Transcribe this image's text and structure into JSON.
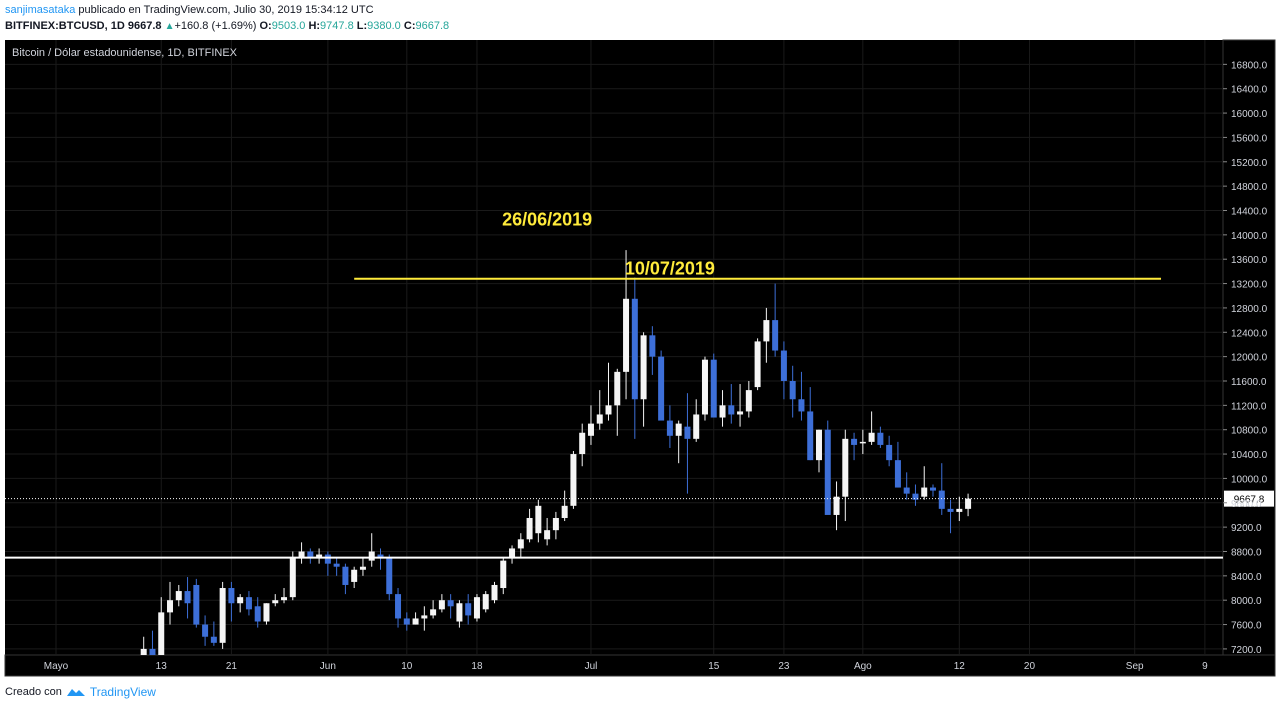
{
  "header": {
    "author": "sanjimasataka",
    "published_text": "publicado en TradingView.com, Julio 30, 2019 15:34:12 UTC",
    "symbol": "BITFINEX:BTCUSD, 1D",
    "last": "9667.8",
    "change": "+160.8 (+1.69%)",
    "open_label": "O:",
    "open": "9503.0",
    "high_label": "H:",
    "high": "9747.8",
    "low_label": "L:",
    "low": "9380.0",
    "close_label": "C:",
    "close": "9667.8"
  },
  "footer": {
    "prefix": "Creado con",
    "brand": "TradingView"
  },
  "colors": {
    "background": "#000000",
    "bull": "#f5f5f5",
    "bear": "#3d6fd8",
    "annotation": "#ffeb3b",
    "support": "#ffffff"
  },
  "chart_data": {
    "type": "candlestick",
    "title": "Bitcoin / Dólar estadounidense, 1D, BITFINEX",
    "ylim": [
      7100,
      17200
    ],
    "y_ticks": [
      7200,
      7600,
      8000,
      8400,
      8800,
      9200,
      9600,
      10000,
      10400,
      10800,
      11200,
      11600,
      12000,
      12400,
      12800,
      13200,
      13600,
      14000,
      14400,
      14800,
      15200,
      15600,
      16000,
      16400,
      16800
    ],
    "x_ticks": [
      {
        "label": "Mayo",
        "date": "2019-05-01"
      },
      {
        "label": "13",
        "date": "2019-05-13"
      },
      {
        "label": "21",
        "date": "2019-05-21"
      },
      {
        "label": "Jun",
        "date": "2019-06-01"
      },
      {
        "label": "10",
        "date": "2019-06-10"
      },
      {
        "label": "18",
        "date": "2019-06-18"
      },
      {
        "label": "Jul",
        "date": "2019-07-01"
      },
      {
        "label": "15",
        "date": "2019-07-15"
      },
      {
        "label": "23",
        "date": "2019-07-23"
      },
      {
        "label": "Ago",
        "date": "2019-08-01"
      },
      {
        "label": "12",
        "date": "2019-08-12"
      },
      {
        "label": "20",
        "date": "2019-08-20"
      },
      {
        "label": "Sep",
        "date": "2019-09-01"
      },
      {
        "label": "9",
        "date": "2019-09-09"
      }
    ],
    "last_price": 9667.8,
    "last_price_label": "9667.8",
    "resistance": {
      "price": 13280,
      "from": "2019-06-04",
      "to": "2019-09-04"
    },
    "support": {
      "price": 8700
    },
    "annotations": [
      {
        "text": "26/06/2019",
        "date": "2019-06-26",
        "price": 14150
      },
      {
        "text": "10/07/2019",
        "date": "2019-07-10",
        "price": 13350
      }
    ],
    "candles": [
      {
        "date": "2019-05-11",
        "o": 6400,
        "h": 7400,
        "l": 6300,
        "c": 7200
      },
      {
        "date": "2019-05-12",
        "o": 7200,
        "h": 7500,
        "l": 6900,
        "c": 7100
      },
      {
        "date": "2019-05-13",
        "o": 7100,
        "h": 8050,
        "l": 7000,
        "c": 7800
      },
      {
        "date": "2019-05-14",
        "o": 7800,
        "h": 8300,
        "l": 7600,
        "c": 8000
      },
      {
        "date": "2019-05-15",
        "o": 8000,
        "h": 8250,
        "l": 7900,
        "c": 8150
      },
      {
        "date": "2019-05-16",
        "o": 8150,
        "h": 8380,
        "l": 7700,
        "c": 7950
      },
      {
        "date": "2019-05-17",
        "o": 8250,
        "h": 8350,
        "l": 7550,
        "c": 7600
      },
      {
        "date": "2019-05-18",
        "o": 7600,
        "h": 7750,
        "l": 7250,
        "c": 7400
      },
      {
        "date": "2019-05-19",
        "o": 7400,
        "h": 7650,
        "l": 7250,
        "c": 7300
      },
      {
        "date": "2019-05-20",
        "o": 7300,
        "h": 8300,
        "l": 7200,
        "c": 8200
      },
      {
        "date": "2019-05-21",
        "o": 8200,
        "h": 8300,
        "l": 7650,
        "c": 7950
      },
      {
        "date": "2019-05-22",
        "o": 7950,
        "h": 8100,
        "l": 7800,
        "c": 8050
      },
      {
        "date": "2019-05-23",
        "o": 8050,
        "h": 8150,
        "l": 7750,
        "c": 7850
      },
      {
        "date": "2019-05-24",
        "o": 7900,
        "h": 8050,
        "l": 7550,
        "c": 7650
      },
      {
        "date": "2019-05-25",
        "o": 7650,
        "h": 7950,
        "l": 7600,
        "c": 7950
      },
      {
        "date": "2019-05-26",
        "o": 7950,
        "h": 8100,
        "l": 7900,
        "c": 8000
      },
      {
        "date": "2019-05-27",
        "o": 8000,
        "h": 8200,
        "l": 7950,
        "c": 8050
      },
      {
        "date": "2019-05-28",
        "o": 8050,
        "h": 8800,
        "l": 8000,
        "c": 8700
      },
      {
        "date": "2019-05-29",
        "o": 8700,
        "h": 8950,
        "l": 8600,
        "c": 8800
      },
      {
        "date": "2019-05-30",
        "o": 8800,
        "h": 8850,
        "l": 8600,
        "c": 8700
      },
      {
        "date": "2019-05-31",
        "o": 8700,
        "h": 8850,
        "l": 8600,
        "c": 8750
      },
      {
        "date": "2019-06-01",
        "o": 8750,
        "h": 8800,
        "l": 8400,
        "c": 8600
      },
      {
        "date": "2019-06-02",
        "o": 8600,
        "h": 8700,
        "l": 8400,
        "c": 8550
      },
      {
        "date": "2019-06-03",
        "o": 8550,
        "h": 8600,
        "l": 8100,
        "c": 8250
      },
      {
        "date": "2019-06-04",
        "o": 8300,
        "h": 8550,
        "l": 8200,
        "c": 8500
      },
      {
        "date": "2019-06-05",
        "o": 8500,
        "h": 8700,
        "l": 8400,
        "c": 8550
      },
      {
        "date": "2019-06-06",
        "o": 8650,
        "h": 9100,
        "l": 8550,
        "c": 8800
      },
      {
        "date": "2019-06-07",
        "o": 8750,
        "h": 8850,
        "l": 8500,
        "c": 8700
      },
      {
        "date": "2019-06-08",
        "o": 8700,
        "h": 8750,
        "l": 8000,
        "c": 8100
      },
      {
        "date": "2019-06-09",
        "o": 8100,
        "h": 8200,
        "l": 7550,
        "c": 7700
      },
      {
        "date": "2019-06-10",
        "o": 7700,
        "h": 7800,
        "l": 7500,
        "c": 7600
      },
      {
        "date": "2019-06-11",
        "o": 7600,
        "h": 7800,
        "l": 7600,
        "c": 7700
      },
      {
        "date": "2019-06-12",
        "o": 7700,
        "h": 7900,
        "l": 7500,
        "c": 7750
      },
      {
        "date": "2019-06-13",
        "o": 7750,
        "h": 8000,
        "l": 7700,
        "c": 7850
      },
      {
        "date": "2019-06-14",
        "o": 7850,
        "h": 8100,
        "l": 7800,
        "c": 8000
      },
      {
        "date": "2019-06-15",
        "o": 8000,
        "h": 8100,
        "l": 7700,
        "c": 7900
      },
      {
        "date": "2019-06-16",
        "o": 7650,
        "h": 8000,
        "l": 7550,
        "c": 7950
      },
      {
        "date": "2019-06-17",
        "o": 7950,
        "h": 8100,
        "l": 7600,
        "c": 7750
      },
      {
        "date": "2019-06-18",
        "o": 7700,
        "h": 8100,
        "l": 7650,
        "c": 8050
      },
      {
        "date": "2019-06-19",
        "o": 7850,
        "h": 8150,
        "l": 7800,
        "c": 8100
      },
      {
        "date": "2019-06-20",
        "o": 8000,
        "h": 8300,
        "l": 7950,
        "c": 8250
      },
      {
        "date": "2019-06-21",
        "o": 8200,
        "h": 8700,
        "l": 8100,
        "c": 8650
      },
      {
        "date": "2019-06-22",
        "o": 8700,
        "h": 8900,
        "l": 8600,
        "c": 8850
      },
      {
        "date": "2019-06-23",
        "o": 8850,
        "h": 9100,
        "l": 8700,
        "c": 9000
      },
      {
        "date": "2019-06-24",
        "o": 9000,
        "h": 9500,
        "l": 8950,
        "c": 9350
      },
      {
        "date": "2019-06-25",
        "o": 9100,
        "h": 9650,
        "l": 8950,
        "c": 9550
      },
      {
        "date": "2019-06-26",
        "o": 9000,
        "h": 9350,
        "l": 8900,
        "c": 9150
      },
      {
        "date": "2019-06-27",
        "o": 9150,
        "h": 9450,
        "l": 9000,
        "c": 9350
      },
      {
        "date": "2019-06-28",
        "o": 9350,
        "h": 9800,
        "l": 9300,
        "c": 9550
      },
      {
        "date": "2019-06-29",
        "o": 9550,
        "h": 10450,
        "l": 9500,
        "c": 10400
      },
      {
        "date": "2019-06-30",
        "o": 10400,
        "h": 10900,
        "l": 10200,
        "c": 10750
      },
      {
        "date": "2019-07-01",
        "o": 10700,
        "h": 11200,
        "l": 10550,
        "c": 10900
      },
      {
        "date": "2019-07-02",
        "o": 10900,
        "h": 11450,
        "l": 10800,
        "c": 11050
      },
      {
        "date": "2019-07-03",
        "o": 11050,
        "h": 11900,
        "l": 10950,
        "c": 11200
      },
      {
        "date": "2019-07-04",
        "o": 11200,
        "h": 11800,
        "l": 10700,
        "c": 11750
      },
      {
        "date": "2019-07-05",
        "o": 11750,
        "h": 13750,
        "l": 11300,
        "c": 12950
      },
      {
        "date": "2019-07-06",
        "o": 12950,
        "h": 13300,
        "l": 10650,
        "c": 11300
      },
      {
        "date": "2019-07-07",
        "o": 11300,
        "h": 12400,
        "l": 10850,
        "c": 12350
      },
      {
        "date": "2019-07-08",
        "o": 12350,
        "h": 12500,
        "l": 11700,
        "c": 12000
      },
      {
        "date": "2019-07-09",
        "o": 12000,
        "h": 12100,
        "l": 11000,
        "c": 10950
      },
      {
        "date": "2019-07-10",
        "o": 10950,
        "h": 11200,
        "l": 10500,
        "c": 10700
      },
      {
        "date": "2019-07-11",
        "o": 10700,
        "h": 10950,
        "l": 10250,
        "c": 10900
      },
      {
        "date": "2019-07-12",
        "o": 10850,
        "h": 11400,
        "l": 9750,
        "c": 10650
      },
      {
        "date": "2019-07-13",
        "o": 10650,
        "h": 11300,
        "l": 10600,
        "c": 11050
      },
      {
        "date": "2019-07-14",
        "o": 11050,
        "h": 12000,
        "l": 10950,
        "c": 11950
      },
      {
        "date": "2019-07-15",
        "o": 11950,
        "h": 12050,
        "l": 11000,
        "c": 11000
      },
      {
        "date": "2019-07-16",
        "o": 11000,
        "h": 11450,
        "l": 10850,
        "c": 11200
      },
      {
        "date": "2019-07-17",
        "o": 11200,
        "h": 11550,
        "l": 10900,
        "c": 11050
      },
      {
        "date": "2019-07-18",
        "o": 11050,
        "h": 11550,
        "l": 10850,
        "c": 11100
      },
      {
        "date": "2019-07-19",
        "o": 11100,
        "h": 11600,
        "l": 11000,
        "c": 11450
      },
      {
        "date": "2019-07-20",
        "o": 11500,
        "h": 12300,
        "l": 11450,
        "c": 12250
      },
      {
        "date": "2019-07-21",
        "o": 12250,
        "h": 12800,
        "l": 11900,
        "c": 12600
      },
      {
        "date": "2019-07-22",
        "o": 12600,
        "h": 13200,
        "l": 12000,
        "c": 12100
      },
      {
        "date": "2019-07-23",
        "o": 12100,
        "h": 12250,
        "l": 11300,
        "c": 11600
      },
      {
        "date": "2019-07-24",
        "o": 11600,
        "h": 11850,
        "l": 11000,
        "c": 11300
      },
      {
        "date": "2019-07-25",
        "o": 11300,
        "h": 11750,
        "l": 10950,
        "c": 11100
      },
      {
        "date": "2019-07-26",
        "o": 11100,
        "h": 11500,
        "l": 10300,
        "c": 10300
      },
      {
        "date": "2019-07-27",
        "o": 10300,
        "h": 10800,
        "l": 10100,
        "c": 10800
      },
      {
        "date": "2019-07-28",
        "o": 10800,
        "h": 10950,
        "l": 9450,
        "c": 9400
      },
      {
        "date": "2019-07-29",
        "o": 9400,
        "h": 9950,
        "l": 9150,
        "c": 9700
      },
      {
        "date": "2019-07-30",
        "o": 9700,
        "h": 10800,
        "l": 9300,
        "c": 10650
      },
      {
        "date": "2019-07-31",
        "o": 10650,
        "h": 10750,
        "l": 10300,
        "c": 10550
      },
      {
        "date": "2019-08-01",
        "o": 10600,
        "h": 10800,
        "l": 10400,
        "c": 10600
      },
      {
        "date": "2019-08-02",
        "o": 10600,
        "h": 11100,
        "l": 10550,
        "c": 10750
      },
      {
        "date": "2019-08-03",
        "o": 10750,
        "h": 10850,
        "l": 10500,
        "c": 10550
      },
      {
        "date": "2019-08-04",
        "o": 10550,
        "h": 10700,
        "l": 10200,
        "c": 10300
      },
      {
        "date": "2019-08-05",
        "o": 10300,
        "h": 10600,
        "l": 9850,
        "c": 9850
      },
      {
        "date": "2019-08-06",
        "o": 9850,
        "h": 10100,
        "l": 9650,
        "c": 9750
      },
      {
        "date": "2019-08-07",
        "o": 9750,
        "h": 9900,
        "l": 9550,
        "c": 9650
      },
      {
        "date": "2019-08-08",
        "o": 9700,
        "h": 10200,
        "l": 9650,
        "c": 9850
      },
      {
        "date": "2019-08-09",
        "o": 9850,
        "h": 9900,
        "l": 9700,
        "c": 9800
      },
      {
        "date": "2019-08-10",
        "o": 9800,
        "h": 10250,
        "l": 9400,
        "c": 9500
      },
      {
        "date": "2019-08-11",
        "o": 9500,
        "h": 9650,
        "l": 9100,
        "c": 9450
      },
      {
        "date": "2019-08-12",
        "o": 9450,
        "h": 9700,
        "l": 9300,
        "c": 9500
      },
      {
        "date": "2019-08-13",
        "o": 9500,
        "h": 9750,
        "l": 9380,
        "c": 9667.8
      }
    ]
  }
}
